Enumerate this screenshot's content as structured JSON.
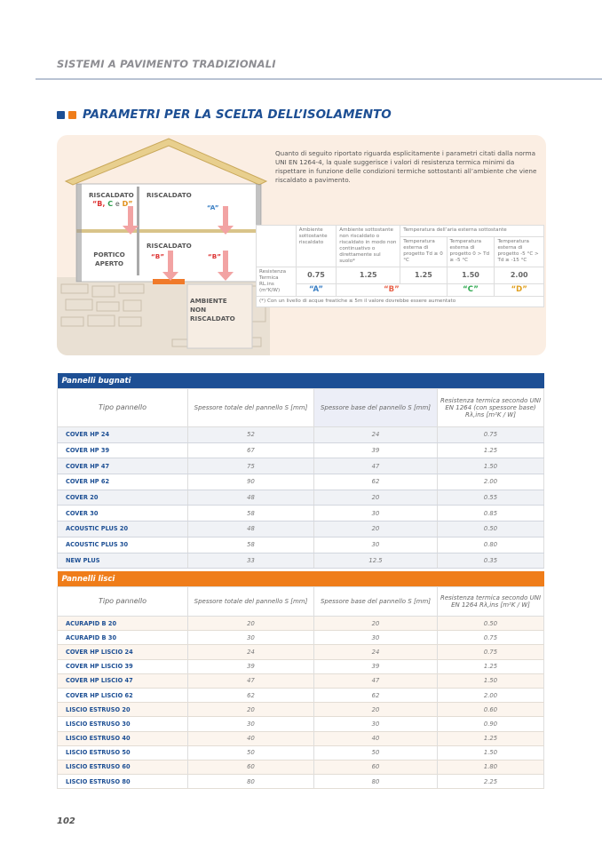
{
  "header": {
    "running_title": "SISTEMI A PAVIMENTO TRADIZIONALI",
    "section_title": "PARAMETRI PER LA SCELTA DELL’ISOLAMENTO",
    "colors": {
      "blue": "#1d4f94",
      "orange": "#ef7d1a"
    }
  },
  "intro": {
    "text": "Quanto di seguito riportato riguarda esplicitamente i parametri citati dalla norma UNI EN 1264-4, la quale suggerisce i valori di resistenza termica minimi da rispettare in funzione delle condizioni termiche sottostanti all’ambiente che viene riscaldato a pavimento."
  },
  "house": {
    "riscaldato_left": "RISCALDATO",
    "bcd_b": "“B,",
    "bcd_c": "C",
    "bcd_e": "e",
    "bcd_d": "D”",
    "riscaldato_top": "RISCALDATO",
    "label_a": "“A”",
    "portico": "PORTICO APERTO",
    "riscaldato_mid": "RISCALDATO",
    "label_b1": "“B”",
    "label_b2": "“B”",
    "ambiente": "AMBIENTE NON RISCALDATO"
  },
  "param_table": {
    "col1": "Ambiente sottostante riscaldato",
    "col2": "Ambiente sottostante non riscaldato o riscaldato in modo non continuativo o direttamente sul suolo*",
    "group": "Temperatura dell’aria esterna sottostante",
    "col3": "Temperatura esterna di progetto Td ≥ 0 °C",
    "col4": "Temperatura esterna di progetto 0 > Td ≥ -5 °C",
    "col5": "Temperatura esterna di progetto -5 °C > Td ≥ -15 °C",
    "row_label": "Resistenza Termica RL.ins (m²K/W)",
    "values": [
      "0.75",
      "1.25",
      "1.25",
      "1.50",
      "2.00"
    ],
    "classes": [
      {
        "label": "“A”",
        "color": "#3a7fc4"
      },
      {
        "label": "“B”",
        "color": "#e8624a"
      },
      {
        "label": "“C”",
        "color": "#2ea84f"
      },
      {
        "label": "“D”",
        "color": "#e0a020"
      }
    ],
    "note": "(*) Con un livello di acque freatiche ≤ 5m il valore dovrebbe essere aumentato"
  },
  "bugnati": {
    "title": "Pannelli bugnati",
    "headers": [
      "Tipo pannello",
      "Spessore totale del pannello S [mm]",
      "Spessore base del pannello S [mm]",
      "Resistenza termica secondo UNI EN 1264 (con spessore base) Rλ,ins [m²K / W]"
    ],
    "rows": [
      [
        "COVER HP 24",
        "52",
        "24",
        "0.75"
      ],
      [
        "COVER HP 39",
        "67",
        "39",
        "1.25"
      ],
      [
        "COVER HP 47",
        "75",
        "47",
        "1.50"
      ],
      [
        "COVER HP 62",
        "90",
        "62",
        "2.00"
      ],
      [
        "COVER 20",
        "48",
        "20",
        "0.55"
      ],
      [
        "COVER 30",
        "58",
        "30",
        "0.85"
      ],
      [
        "ACOUSTIC PLUS 20",
        "48",
        "20",
        "0.50"
      ],
      [
        "ACOUSTIC PLUS 30",
        "58",
        "30",
        "0.80"
      ],
      [
        "NEW PLUS",
        "33",
        "12.5",
        "0.35"
      ]
    ]
  },
  "lisci": {
    "title": "Pannelli lisci",
    "headers": [
      "Tipo pannello",
      "Spessore totale del pannello S [mm]",
      "Spessore base del pannello S [mm]",
      "Resistenza termica secondo UNI EN 1264 Rλ,ins [m²K / W]"
    ],
    "rows": [
      [
        "ACURAPID B 20",
        "20",
        "20",
        "0.50"
      ],
      [
        "ACURAPID B 30",
        "30",
        "30",
        "0.75"
      ],
      [
        "COVER HP LISCIO 24",
        "24",
        "24",
        "0.75"
      ],
      [
        "COVER HP LISCIO 39",
        "39",
        "39",
        "1.25"
      ],
      [
        "COVER HP LISCIO 47",
        "47",
        "47",
        "1.50"
      ],
      [
        "COVER HP LISCIO 62",
        "62",
        "62",
        "2.00"
      ],
      [
        "LISCIO ESTRUSO 20",
        "20",
        "20",
        "0.60"
      ],
      [
        "LISCIO ESTRUSO 30",
        "30",
        "30",
        "0.90"
      ],
      [
        "LISCIO ESTRUSO 40",
        "40",
        "40",
        "1.25"
      ],
      [
        "LISCIO ESTRUSO 50",
        "50",
        "50",
        "1.50"
      ],
      [
        "LISCIO ESTRUSO 60",
        "60",
        "60",
        "1.80"
      ],
      [
        "LISCIO ESTRUSO 80",
        "80",
        "80",
        "2.25"
      ]
    ]
  },
  "footer": {
    "page_number": "102"
  }
}
